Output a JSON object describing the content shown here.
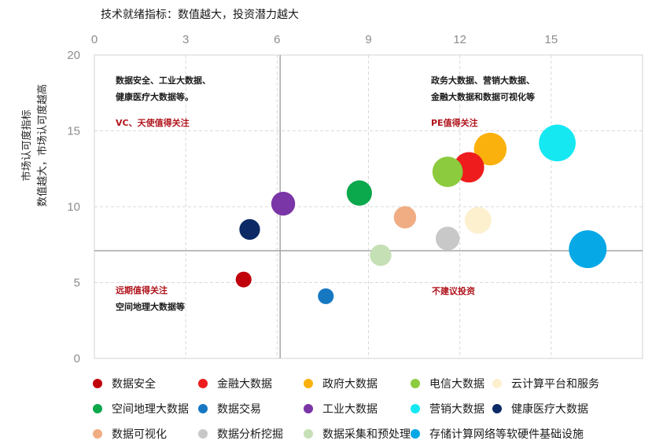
{
  "chart_data": {
    "type": "scatter",
    "title": "技术就绪指标：数值越大，投资潜力越大",
    "ylabel_line1": "市场认可度指标",
    "ylabel_line2": "数值越大，市场认可度越高",
    "xlim": [
      0,
      18
    ],
    "ylim": [
      0,
      20
    ],
    "xticks": [
      "0",
      "3",
      "6",
      "9",
      "12",
      "15"
    ],
    "yticks": [
      "0",
      "5",
      "10",
      "15",
      "20"
    ],
    "grid": true,
    "legend_position": "bottom",
    "quadrant_lines": {
      "x": 6.1,
      "y": 7.1
    },
    "series": [
      {
        "name": "数据安全",
        "color": "#c0000b",
        "x": 4.9,
        "y": 5.2,
        "size": 0.7
      },
      {
        "name": "金融大数据",
        "color": "#ee1c1c",
        "x": 12.3,
        "y": 12.6,
        "size": 2.6
      },
      {
        "name": "政府大数据",
        "color": "#fbb10d",
        "x": 13.0,
        "y": 13.8,
        "size": 3.0
      },
      {
        "name": "电信大数据",
        "color": "#8ccb3e",
        "x": 11.6,
        "y": 12.3,
        "size": 2.6
      },
      {
        "name": "云计算平台和服务",
        "color": "#fdf0cf",
        "x": 12.6,
        "y": 9.1,
        "size": 2.0
      },
      {
        "name": "空间地理大数据",
        "color": "#0ba84c",
        "x": 8.7,
        "y": 10.9,
        "size": 1.8
      },
      {
        "name": "数据交易",
        "color": "#1778c2",
        "x": 7.6,
        "y": 4.1,
        "size": 0.7
      },
      {
        "name": "工业大数据",
        "color": "#7a35a6",
        "x": 6.2,
        "y": 10.2,
        "size": 1.6
      },
      {
        "name": "营销大数据",
        "color": "#16e8f2",
        "x": 15.2,
        "y": 14.2,
        "size": 3.8
      },
      {
        "name": "健康医疗大数据",
        "color": "#0b2a66",
        "x": 5.1,
        "y": 8.5,
        "size": 1.2
      },
      {
        "name": "数据可视化",
        "color": "#f0ad84",
        "x": 10.2,
        "y": 9.3,
        "size": 1.4
      },
      {
        "name": "数据分析挖掘",
        "color": "#c8c8c8",
        "x": 11.6,
        "y": 7.9,
        "size": 1.6
      },
      {
        "name": "数据采集和预处理",
        "color": "#c6e0b6",
        "x": 9.4,
        "y": 6.8,
        "size": 1.3
      },
      {
        "name": "存储计算网络等软硬件基础设施",
        "color": "#07a8e6",
        "x": 16.2,
        "y": 7.2,
        "size": 4.0
      }
    ],
    "annotations": {
      "top_left": [
        "数据安全、工业大数据、",
        "健康医疗大数据等。"
      ],
      "top_left_tag": "VC、天使值得关注",
      "top_right": [
        "政务大数据、营销大数据、",
        "金融大数据和数据可视化等"
      ],
      "top_right_tag": "PE值得关注",
      "bottom_left_tag": "远期值得关注",
      "bottom_left": "空间地理大数据等",
      "bottom_right_tag": "不建议投资"
    }
  }
}
